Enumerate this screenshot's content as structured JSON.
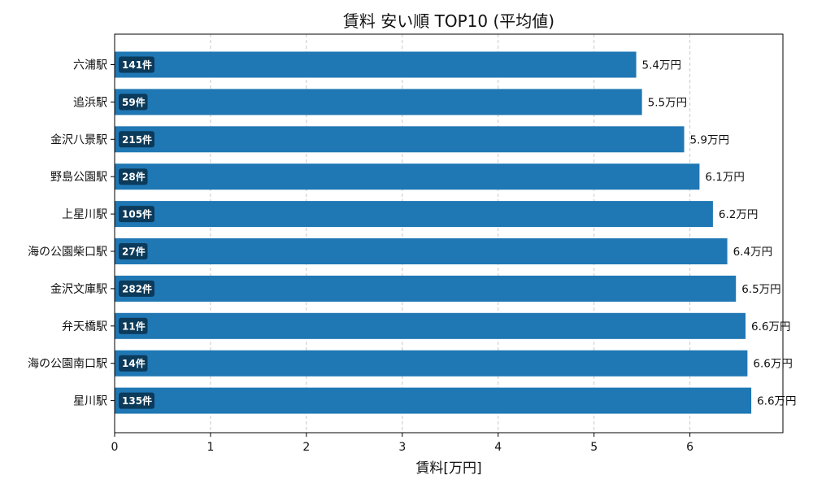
{
  "chart_data": {
    "type": "bar",
    "orientation": "horizontal",
    "title": "賃料 安い順 TOP10 (平均値)",
    "xlabel": "賃料[万円]",
    "ylabel": "",
    "xlim": [
      0,
      6.97
    ],
    "xticks": [
      0,
      1,
      2,
      3,
      4,
      5,
      6
    ],
    "grid": {
      "x": true,
      "style": "dashed"
    },
    "legend": null,
    "bar_color": "#1f77b4",
    "count_badge_color": "#0b3a5a",
    "categories": [
      "六浦駅",
      "追浜駅",
      "金沢八景駅",
      "野島公園駅",
      "上星川駅",
      "海の公園柴口駅",
      "金沢文庫駅",
      "弁天橋駅",
      "海の公園南口駅",
      "星川駅"
    ],
    "values": [
      5.44,
      5.5,
      5.94,
      6.1,
      6.24,
      6.39,
      6.48,
      6.58,
      6.6,
      6.64
    ],
    "value_labels": [
      "5.4万円",
      "5.5万円",
      "5.9万円",
      "6.1万円",
      "6.2万円",
      "6.4万円",
      "6.5万円",
      "6.6万円",
      "6.6万円",
      "6.6万円"
    ],
    "counts": [
      "141件",
      "59件",
      "215件",
      "28件",
      "105件",
      "27件",
      "282件",
      "11件",
      "14件",
      "135件"
    ]
  }
}
